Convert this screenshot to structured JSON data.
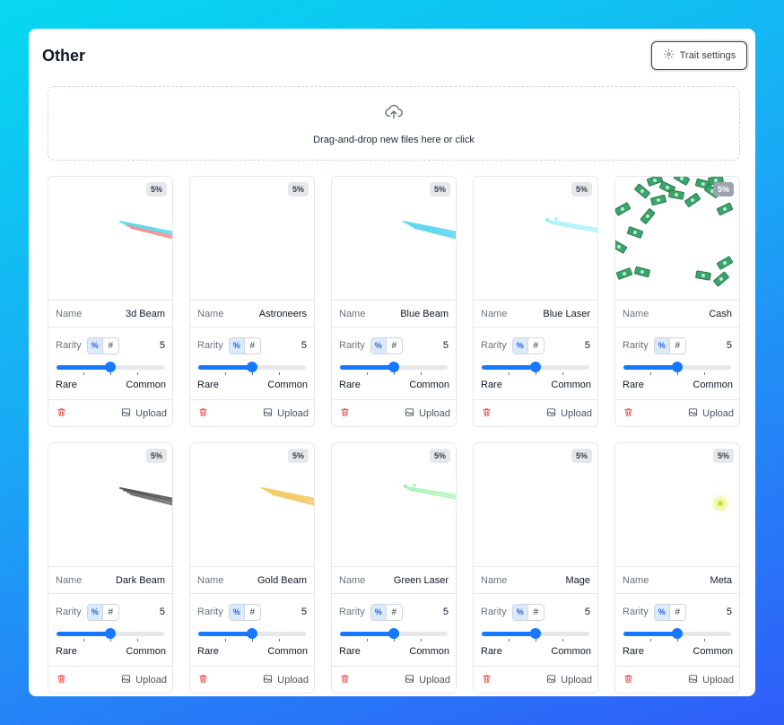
{
  "section": {
    "title": "Other",
    "trait_settings_label": "Trait settings",
    "dropzone_text": "Drag-and-drop new files here or click"
  },
  "labels": {
    "name": "Name",
    "rarity": "Rarity",
    "percent_mode": "%",
    "count_mode": "#",
    "rare": "Rare",
    "common": "Common",
    "upload": "Upload"
  },
  "icons": {
    "trait_settings": "gear-icon",
    "dropzone": "cloud-upload-icon",
    "delete": "trash-icon",
    "upload": "image-icon"
  },
  "colors": {
    "accent": "#1677ff",
    "delete": "#ef4444"
  },
  "traits": [
    {
      "name": "3d Beam",
      "rarity_percent": "5%",
      "rarity_value": "5",
      "slider_fraction": 0.5,
      "preview": "beam",
      "beam_color": "#4dd8f0",
      "beam_color2": "#f08a8a"
    },
    {
      "name": "Astroneers",
      "rarity_percent": "5%",
      "rarity_value": "5",
      "slider_fraction": 0.5,
      "preview": "empty"
    },
    {
      "name": "Blue Beam",
      "rarity_percent": "5%",
      "rarity_value": "5",
      "slider_fraction": 0.5,
      "preview": "beam",
      "beam_color": "#54d4ee",
      "beam_color2": "#54d4ee"
    },
    {
      "name": "Blue Laser",
      "rarity_percent": "5%",
      "rarity_value": "5",
      "slider_fraction": 0.5,
      "preview": "laser",
      "beam_color": "#8cefff"
    },
    {
      "name": "Cash",
      "rarity_percent": "5%",
      "rarity_value": "5",
      "slider_fraction": 0.5,
      "preview": "cash"
    },
    {
      "name": "Dark Beam",
      "rarity_percent": "5%",
      "rarity_value": "5",
      "slider_fraction": 0.5,
      "preview": "beam",
      "beam_color": "#4b4b4b",
      "beam_color2": "#6b6b6b"
    },
    {
      "name": "Gold Beam",
      "rarity_percent": "5%",
      "rarity_value": "5",
      "slider_fraction": 0.5,
      "preview": "beam",
      "beam_color": "#f2c75c",
      "beam_color2": "#f2c75c"
    },
    {
      "name": "Green Laser",
      "rarity_percent": "5%",
      "rarity_value": "5",
      "slider_fraction": 0.5,
      "preview": "laser",
      "beam_color": "#8ef2a0"
    },
    {
      "name": "Mage",
      "rarity_percent": "5%",
      "rarity_value": "5",
      "slider_fraction": 0.5,
      "preview": "empty"
    },
    {
      "name": "Meta",
      "rarity_percent": "5%",
      "rarity_value": "5",
      "slider_fraction": 0.5,
      "preview": "glow",
      "beam_color": "#e6f26a"
    }
  ]
}
